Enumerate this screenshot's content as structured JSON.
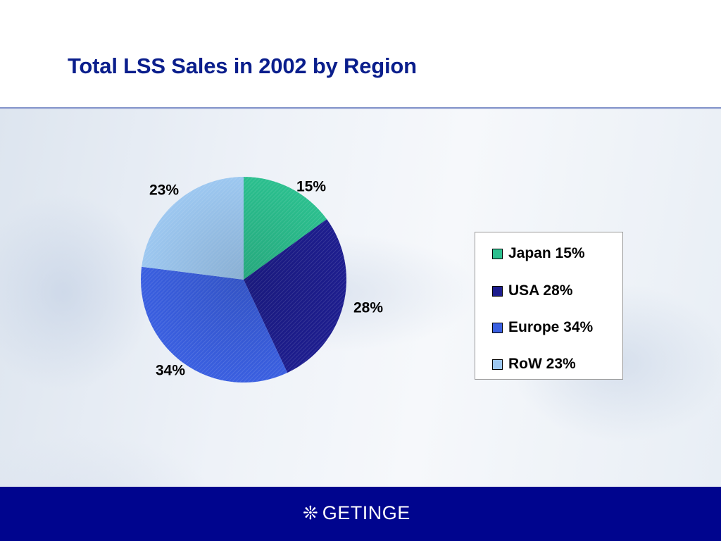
{
  "chart_data": {
    "type": "pie",
    "title": "Total LSS Sales in 2002 by Region",
    "categories": [
      "Japan",
      "USA",
      "Europe",
      "RoW"
    ],
    "values": [
      15,
      28,
      34,
      23
    ],
    "data_labels": [
      "15%",
      "28%",
      "34%",
      "23%"
    ],
    "legend": [
      "Japan 15%",
      "USA 28%",
      "Europe 34%",
      "RoW 23%"
    ],
    "colors": [
      "#2bbf8e",
      "#1d1d8e",
      "#3a5fe0",
      "#9cc7f0"
    ],
    "legend_position": "right",
    "start_angle_deg": 0,
    "direction": "clockwise"
  },
  "footer": {
    "logo_mark": "❊",
    "logo_text": "GETINGE",
    "background": "#00058e"
  }
}
